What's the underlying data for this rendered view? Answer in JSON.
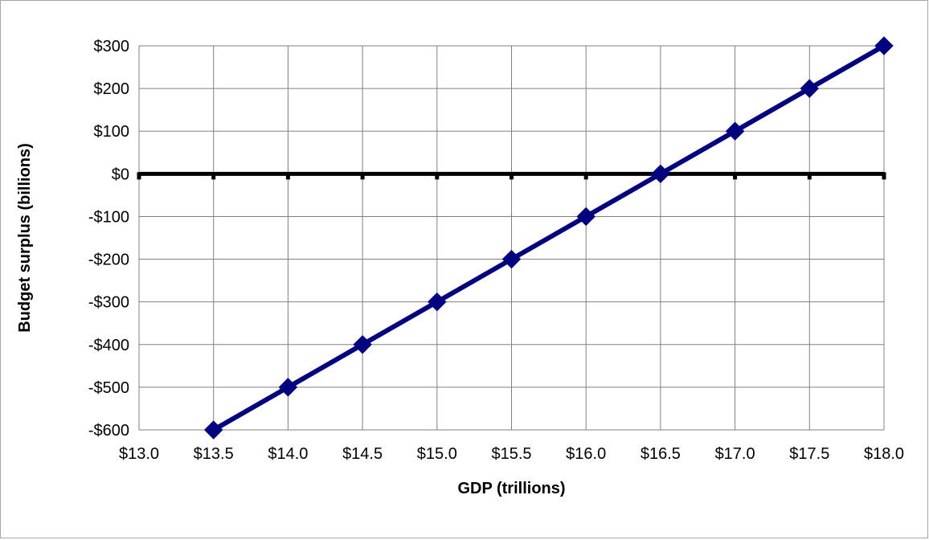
{
  "chart_data": {
    "type": "line",
    "title": "",
    "xlabel": "GDP (trillions)",
    "ylabel": "Budget surplus (billions)",
    "x_tick_labels": [
      "$13.0",
      "$13.5",
      "$14.0",
      "$14.5",
      "$15.0",
      "$15.5",
      "$16.0",
      "$16.5",
      "$17.0",
      "$17.5",
      "$18.0"
    ],
    "y_tick_labels": [
      "$300",
      "$200",
      "$100",
      "$0",
      "-$100",
      "-$200",
      "-$300",
      "-$400",
      "-$500",
      "-$600"
    ],
    "xlim": [
      13.0,
      18.0
    ],
    "ylim": [
      -600,
      300
    ],
    "x_tick_values": [
      13.0,
      13.5,
      14.0,
      14.5,
      15.0,
      15.5,
      16.0,
      16.5,
      17.0,
      17.5,
      18.0
    ],
    "y_tick_values": [
      300,
      200,
      100,
      0,
      -100,
      -200,
      -300,
      -400,
      -500,
      -600
    ],
    "grid": true,
    "legend": "none",
    "series": [
      {
        "x": [
          13.5,
          14.0,
          14.5,
          15.0,
          15.5,
          16.0,
          16.5,
          17.0,
          17.5,
          18.0
        ],
        "values": [
          -600,
          -500,
          -400,
          -300,
          -200,
          -100,
          0,
          100,
          200,
          300
        ],
        "color": "#000080",
        "marker": "diamond"
      }
    ],
    "zero_line_color": "#000000"
  }
}
